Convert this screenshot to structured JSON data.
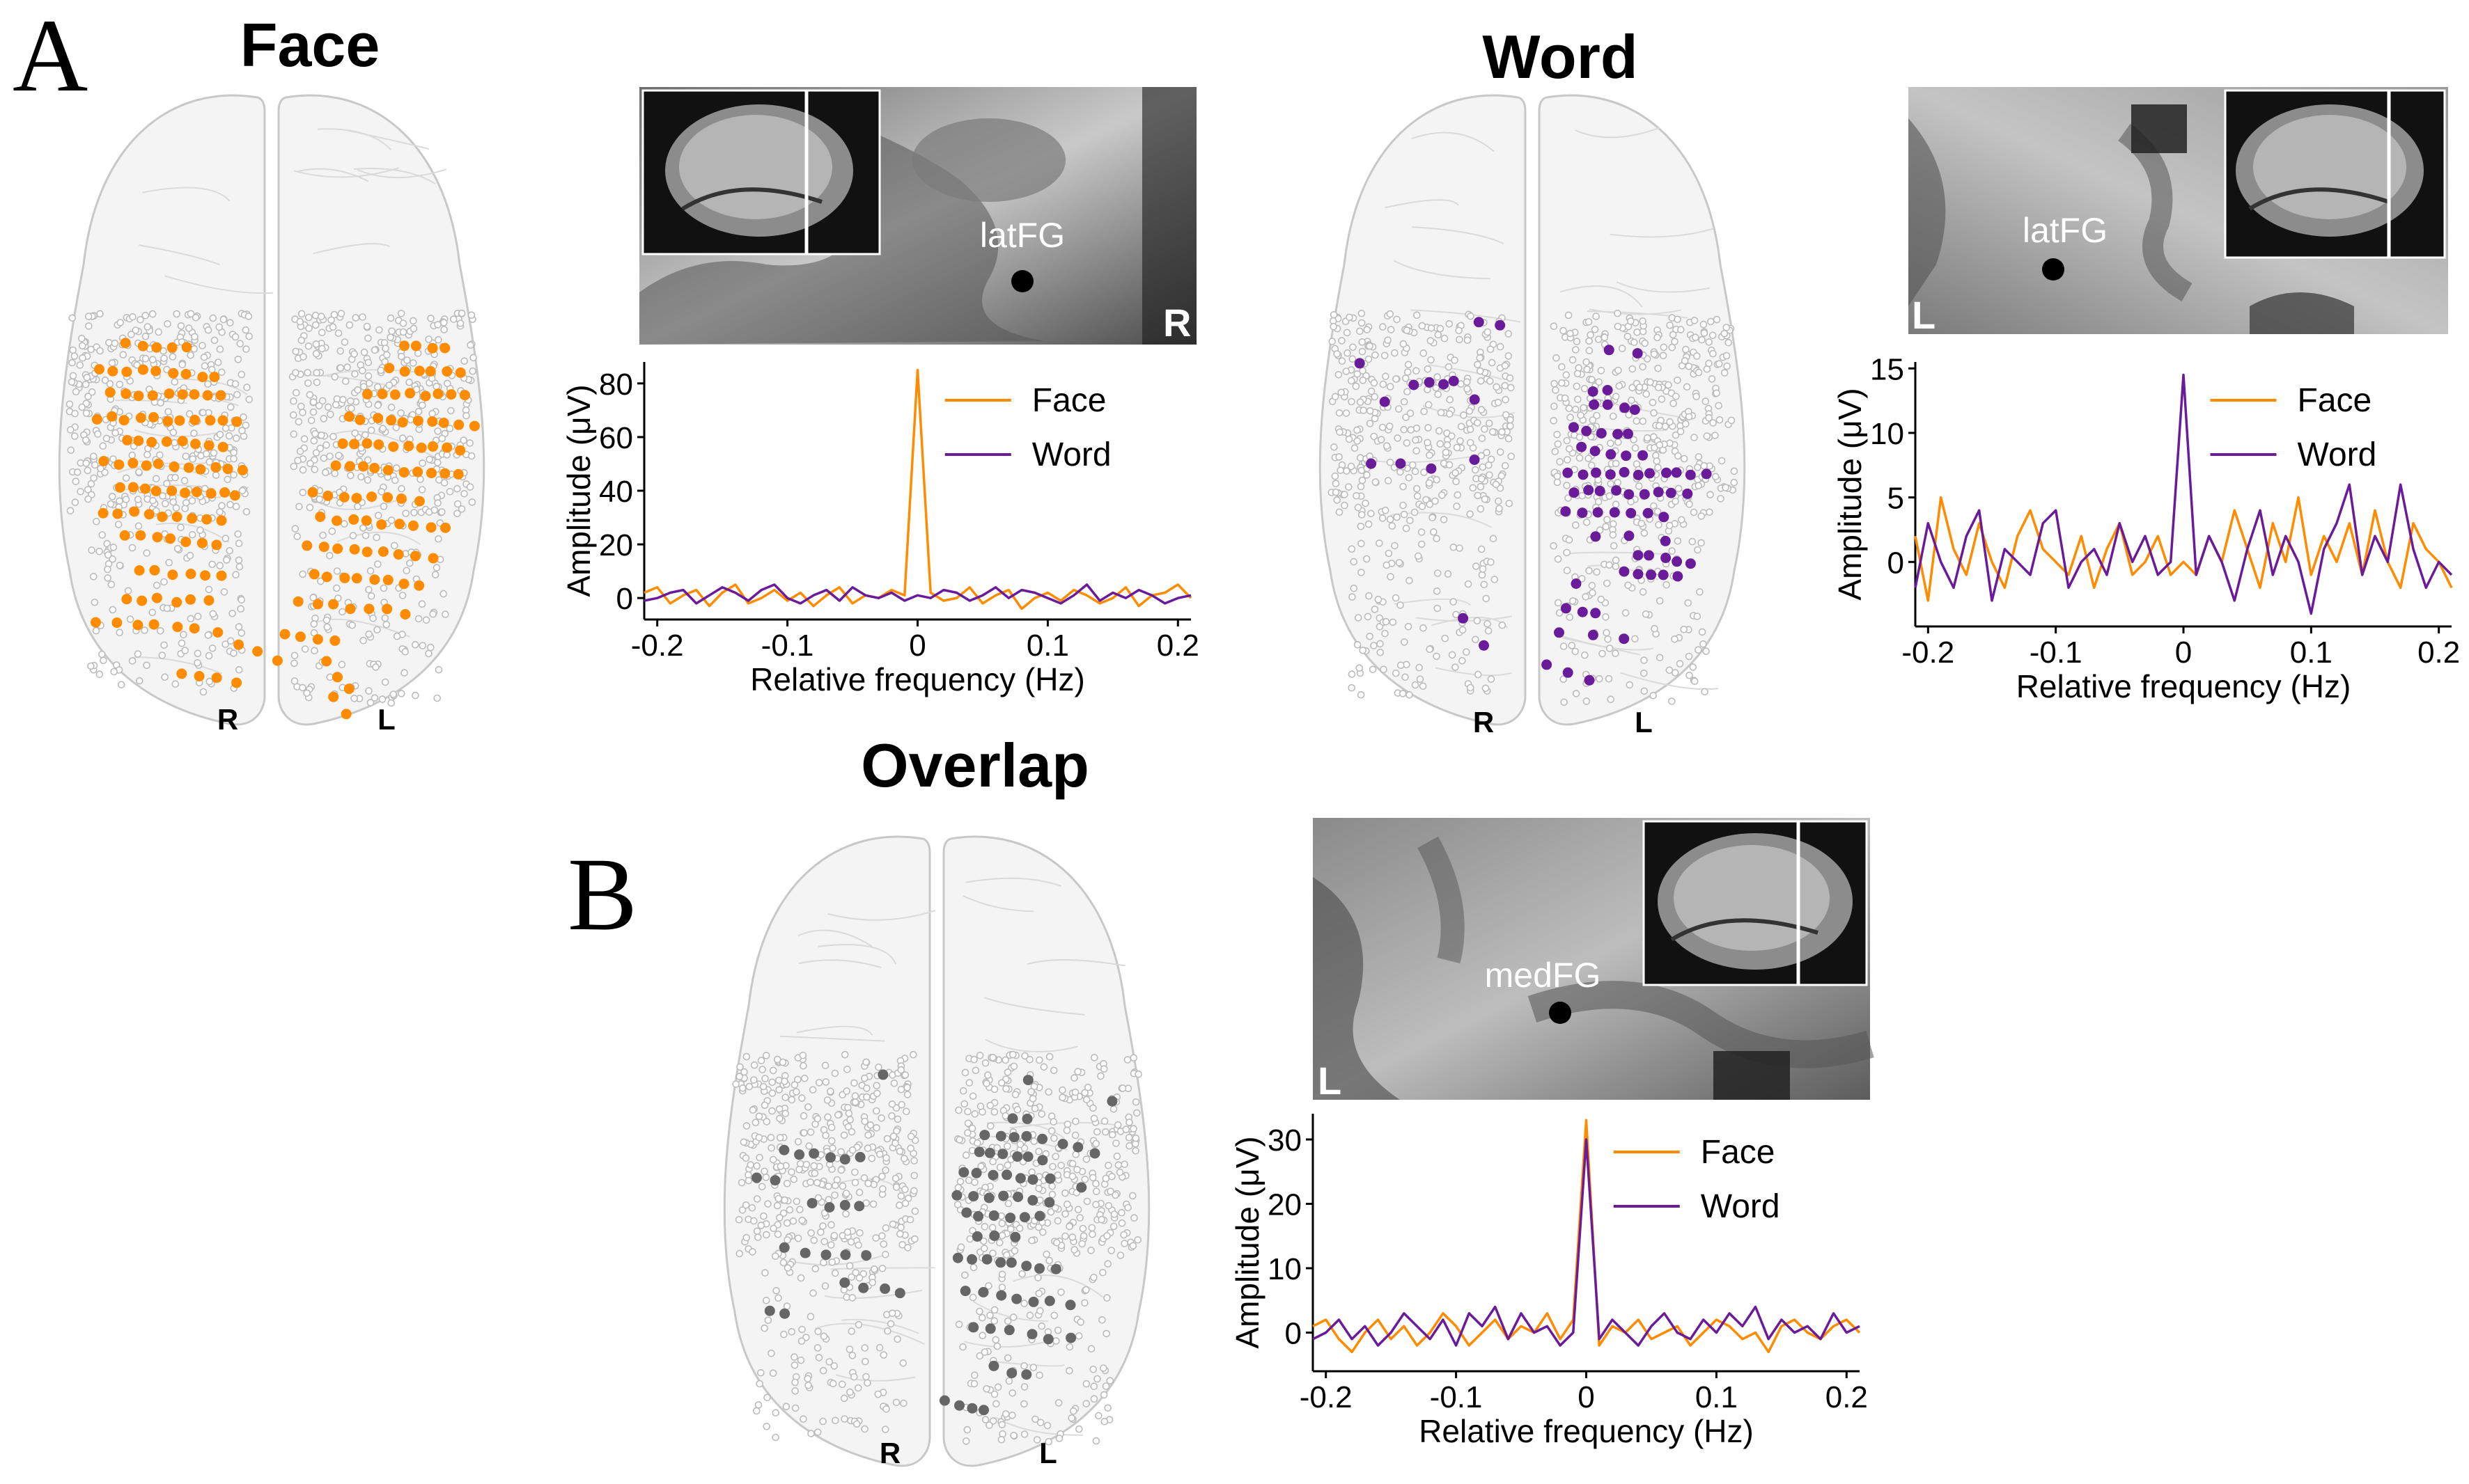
{
  "panels": {
    "A": {
      "letter": "A",
      "face": {
        "title": "Face",
        "hemi_right": "R",
        "hemi_left": "L",
        "mri_label": "latFG",
        "mri_side": "R"
      },
      "word": {
        "title": "Word",
        "hemi_right": "R",
        "hemi_left": "L",
        "mri_label": "latFG",
        "mri_side": "L"
      }
    },
    "B": {
      "letter": "B",
      "overlap": {
        "title": "Overlap",
        "hemi_right": "R",
        "hemi_left": "L",
        "mri_label": "medFG",
        "mri_side": "L"
      }
    }
  },
  "colors": {
    "face": "#FF8C00",
    "word": "#6A1B9A",
    "overlap": "#666666",
    "electrode_empty": "#bbbbbb"
  },
  "chart_data": [
    {
      "type": "line",
      "id": "face",
      "ylabel": "Amplitude (μV)",
      "xlabel": "Relative frequency (Hz)",
      "xlim": [
        -0.21,
        0.21
      ],
      "ylim": [
        -8,
        88
      ],
      "xticks": [
        "-0.2",
        "-0.1",
        "0",
        "0.1",
        "0.2"
      ],
      "xtick_values": [
        -0.2,
        -0.1,
        0,
        0.1,
        0.2
      ],
      "yticks": [
        "0",
        "20",
        "40",
        "60",
        "80"
      ],
      "ytick_values": [
        0,
        20,
        40,
        60,
        80
      ],
      "legend": [
        "Face",
        "Word"
      ],
      "x": [
        -0.21,
        -0.2,
        -0.19,
        -0.18,
        -0.17,
        -0.16,
        -0.15,
        -0.14,
        -0.13,
        -0.12,
        -0.11,
        -0.1,
        -0.09,
        -0.08,
        -0.07,
        -0.06,
        -0.05,
        -0.04,
        -0.03,
        -0.02,
        -0.01,
        0,
        0.01,
        0.02,
        0.03,
        0.04,
        0.05,
        0.06,
        0.07,
        0.08,
        0.09,
        0.1,
        0.11,
        0.12,
        0.13,
        0.14,
        0.15,
        0.16,
        0.17,
        0.18,
        0.19,
        0.2,
        0.21
      ],
      "series": [
        {
          "name": "Face",
          "values": [
            2,
            4,
            -2,
            1,
            3,
            -3,
            2,
            5,
            -2,
            0,
            3,
            -1,
            2,
            -3,
            1,
            4,
            -2,
            1,
            0,
            3,
            1,
            85,
            2,
            -1,
            0,
            4,
            -2,
            1,
            3,
            -4,
            0,
            2,
            -1,
            3,
            1,
            -2,
            0,
            4,
            -3,
            1,
            2,
            5,
            0
          ]
        },
        {
          "name": "Word",
          "values": [
            -1,
            0,
            2,
            3,
            -2,
            1,
            4,
            2,
            -1,
            3,
            5,
            0,
            -2,
            1,
            3,
            -1,
            4,
            1,
            0,
            2,
            -1,
            1,
            0,
            3,
            2,
            -1,
            1,
            4,
            0,
            3,
            2,
            0,
            -2,
            1,
            5,
            -1,
            2,
            0,
            3,
            1,
            -2,
            0,
            1
          ]
        }
      ]
    },
    {
      "type": "line",
      "id": "word",
      "ylabel": "Amplitude (μV)",
      "xlabel": "Relative frequency (Hz)",
      "xlim": [
        -0.21,
        0.21
      ],
      "ylim": [
        -5,
        15.5
      ],
      "xticks": [
        "-0.2",
        "-0.1",
        "0",
        "0.1",
        "0.2"
      ],
      "xtick_values": [
        -0.2,
        -0.1,
        0,
        0.1,
        0.2
      ],
      "yticks": [
        "0",
        "5",
        "10",
        "15"
      ],
      "ytick_values": [
        0,
        5,
        10,
        15
      ],
      "legend": [
        "Face",
        "Word"
      ],
      "x": [
        -0.21,
        -0.2,
        -0.19,
        -0.18,
        -0.17,
        -0.16,
        -0.15,
        -0.14,
        -0.13,
        -0.12,
        -0.11,
        -0.1,
        -0.09,
        -0.08,
        -0.07,
        -0.06,
        -0.05,
        -0.04,
        -0.03,
        -0.02,
        -0.01,
        0,
        0.01,
        0.02,
        0.03,
        0.04,
        0.05,
        0.06,
        0.07,
        0.08,
        0.09,
        0.1,
        0.11,
        0.12,
        0.13,
        0.14,
        0.15,
        0.16,
        0.17,
        0.18,
        0.19,
        0.2,
        0.21
      ],
      "series": [
        {
          "name": "Face",
          "values": [
            2,
            -3,
            5,
            1,
            -1,
            3,
            0,
            -2,
            2,
            4,
            1,
            0,
            -1,
            2,
            -2,
            1,
            3,
            -1,
            0,
            2,
            -1,
            0,
            -1,
            2,
            0,
            4,
            1,
            -2,
            3,
            0,
            5,
            -1,
            2,
            0,
            3,
            -1,
            4,
            0,
            -2,
            3,
            1,
            0,
            -2
          ]
        },
        {
          "name": "Word",
          "values": [
            -2,
            3,
            0,
            -2,
            2,
            4,
            -3,
            1,
            0,
            -1,
            3,
            4,
            -2,
            0,
            1,
            -1,
            3,
            0,
            2,
            -1,
            0,
            14.5,
            -1,
            2,
            0,
            -3,
            1,
            4,
            -1,
            2,
            0,
            -4,
            1,
            3,
            6,
            -1,
            2,
            0,
            6,
            1,
            -2,
            0,
            -1
          ]
        }
      ]
    },
    {
      "type": "line",
      "id": "overlap",
      "ylabel": "Amplitude (μV)",
      "xlabel": "Relative frequency (Hz)",
      "xlim": [
        -0.21,
        0.21
      ],
      "ylim": [
        -6,
        34
      ],
      "xticks": [
        "-0.2",
        "-0.1",
        "0",
        "0.1",
        "0.2"
      ],
      "xtick_values": [
        -0.2,
        -0.1,
        0,
        0.1,
        0.2
      ],
      "yticks": [
        "0",
        "10",
        "20",
        "30"
      ],
      "ytick_values": [
        0,
        10,
        20,
        30
      ],
      "legend": [
        "Face",
        "Word"
      ],
      "x": [
        -0.21,
        -0.2,
        -0.19,
        -0.18,
        -0.17,
        -0.16,
        -0.15,
        -0.14,
        -0.13,
        -0.12,
        -0.11,
        -0.1,
        -0.09,
        -0.08,
        -0.07,
        -0.06,
        -0.05,
        -0.04,
        -0.03,
        -0.02,
        -0.01,
        0,
        0.01,
        0.02,
        0.03,
        0.04,
        0.05,
        0.06,
        0.07,
        0.08,
        0.09,
        0.1,
        0.11,
        0.12,
        0.13,
        0.14,
        0.15,
        0.16,
        0.17,
        0.18,
        0.19,
        0.2,
        0.21
      ],
      "series": [
        {
          "name": "Face",
          "values": [
            1,
            2,
            -1,
            -3,
            0,
            2,
            -1,
            1,
            -2,
            0,
            3,
            1,
            -2,
            0,
            2,
            -1,
            1,
            0,
            3,
            -1,
            2,
            33,
            -2,
            1,
            0,
            2,
            -1,
            0,
            1,
            -2,
            0,
            2,
            1,
            -1,
            0,
            -3,
            1,
            2,
            0,
            -1,
            1,
            2,
            0
          ]
        },
        {
          "name": "Word",
          "values": [
            -1,
            0,
            2,
            -1,
            1,
            -2,
            0,
            3,
            1,
            -1,
            2,
            -2,
            3,
            1,
            4,
            -1,
            3,
            0,
            1,
            -2,
            0,
            30,
            -1,
            2,
            0,
            -2,
            1,
            3,
            0,
            -1,
            2,
            0,
            3,
            1,
            4,
            -1,
            2,
            0,
            1,
            -1,
            3,
            0,
            1
          ]
        }
      ]
    }
  ]
}
